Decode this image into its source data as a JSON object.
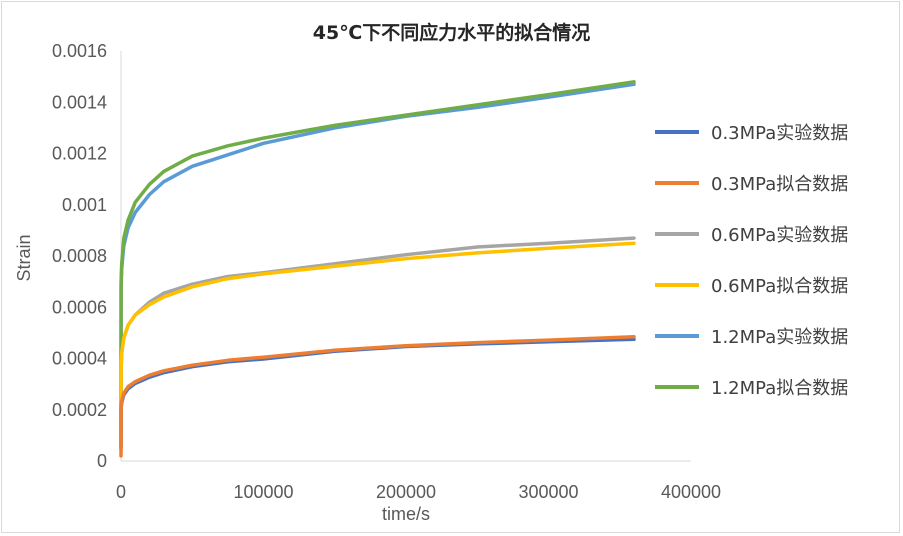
{
  "chart_data": {
    "type": "line",
    "title": "45℃下不同应力水平的拟合情况",
    "xlabel": "time/s",
    "ylabel": "Strain",
    "xlim": [
      0,
      400000
    ],
    "ylim": [
      0,
      0.0016
    ],
    "x_ticks": [
      "0",
      "100000",
      "200000",
      "300000",
      "400000"
    ],
    "y_ticks": [
      "0",
      "0.0002",
      "0.0004",
      "0.0006",
      "0.0008",
      "0.001",
      "0.0012",
      "0.0014",
      "0.0016"
    ],
    "grid": false,
    "legend_position": "right",
    "x": [
      0,
      100,
      500,
      2000,
      5000,
      10000,
      20000,
      30000,
      50000,
      75000,
      100000,
      150000,
      200000,
      250000,
      300000,
      360000
    ],
    "series": [
      {
        "name": "0.3MPa实验数据",
        "color": "#4472c4",
        "values": [
          5e-05,
          0.000205,
          0.000228,
          0.000258,
          0.000282,
          0.000303,
          0.000327,
          0.000345,
          0.000368,
          0.000387,
          0.000398,
          0.000428,
          0.000447,
          0.000457,
          0.000465,
          0.000475
        ]
      },
      {
        "name": "0.3MPa拟合数据",
        "color": "#ed7d31",
        "values": [
          2e-05,
          0.000205,
          0.000235,
          0.000265,
          0.00029,
          0.00031,
          0.000335,
          0.000352,
          0.000374,
          0.000393,
          0.000405,
          0.000432,
          0.00045,
          0.000462,
          0.000472,
          0.000485
        ]
      },
      {
        "name": "0.6MPa实验数据",
        "color": "#a5a5a5",
        "values": [
          8e-05,
          0.00036,
          0.00042,
          0.00048,
          0.00053,
          0.00057,
          0.00062,
          0.000655,
          0.00069,
          0.00072,
          0.000735,
          0.00077,
          0.000805,
          0.000835,
          0.00085,
          0.00087
        ]
      },
      {
        "name": "0.6MPa拟合数据",
        "color": "#ffc000",
        "values": [
          5e-05,
          0.00036,
          0.00042,
          0.00048,
          0.00053,
          0.00057,
          0.00061,
          0.00064,
          0.00068,
          0.000712,
          0.00073,
          0.00076,
          0.00079,
          0.000812,
          0.00083,
          0.00085
        ]
      },
      {
        "name": "1.2MPa实验数据",
        "color": "#5b9bd5",
        "values": [
          0.00015,
          0.00068,
          0.00075,
          0.00084,
          0.00091,
          0.00097,
          0.00104,
          0.00109,
          0.00115,
          0.001195,
          0.00124,
          0.0013,
          0.001345,
          0.00138,
          0.00142,
          0.00147
        ]
      },
      {
        "name": "1.2MPa拟合数据",
        "color": "#70ad47",
        "values": [
          0.0002,
          0.0007,
          0.00077,
          0.00087,
          0.00094,
          0.00101,
          0.00108,
          0.00113,
          0.00119,
          0.00123,
          0.00126,
          0.00131,
          0.00135,
          0.00139,
          0.00143,
          0.00148
        ]
      }
    ]
  }
}
